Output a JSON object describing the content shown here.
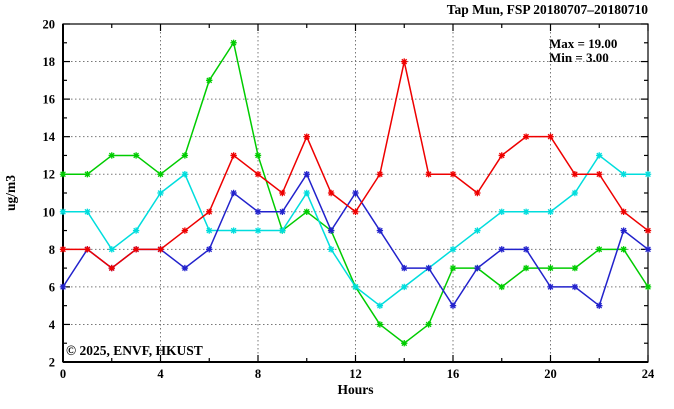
{
  "title": "Tap Mun, FSP 20180707–20180710",
  "legend": {
    "max_label": "Max = 19.00",
    "min_label": "Min =  3.00"
  },
  "watermark": "© 2025, ENVF, HKUST",
  "axes": {
    "x_label": "Hours",
    "y_label": "ug/m3",
    "x_tick_labels": [
      "0",
      "4",
      "8",
      "12",
      "16",
      "20",
      "24"
    ],
    "y_tick_labels": [
      "2",
      "4",
      "6",
      "8",
      "10",
      "12",
      "14",
      "16",
      "18",
      "20"
    ]
  },
  "colors": {
    "red": "#ee0000",
    "green": "#00cc00",
    "blue": "#2222cc",
    "cyan": "#00dddd",
    "grid": "#787878",
    "axis": "#000000",
    "watermark": "#d9d9d9"
  },
  "chart_data": {
    "type": "line",
    "title": "Tap Mun, FSP 20180707–20180710",
    "xlabel": "Hours",
    "ylabel": "ug/m3",
    "xlim": [
      0,
      24
    ],
    "ylim": [
      2,
      20
    ],
    "x_major_ticks": [
      0,
      4,
      8,
      12,
      16,
      20,
      24
    ],
    "x_minor_step": 2,
    "y_major_ticks": [
      2,
      4,
      6,
      8,
      10,
      12,
      14,
      16,
      18,
      20
    ],
    "y_minor_step": 1,
    "grid": true,
    "legend_position": "top-right-inside",
    "stats": {
      "max": 19.0,
      "min": 3.0
    },
    "x": [
      0,
      1,
      2,
      3,
      4,
      5,
      6,
      7,
      8,
      9,
      10,
      11,
      12,
      13,
      14,
      15,
      16,
      17,
      18,
      19,
      20,
      21,
      22,
      23,
      24
    ],
    "series": [
      {
        "name": "green",
        "color": "#00cc00",
        "values": [
          12,
          12,
          13,
          13,
          12,
          13,
          17,
          19,
          13,
          9,
          10,
          9,
          6,
          4,
          3,
          4,
          7,
          7,
          6,
          7,
          7,
          7,
          8,
          8,
          6
        ]
      },
      {
        "name": "cyan",
        "color": "#00dddd",
        "values": [
          10,
          10,
          8,
          9,
          11,
          12,
          9,
          9,
          9,
          9,
          11,
          8,
          6,
          5,
          6,
          7,
          8,
          9,
          10,
          10,
          10,
          11,
          13,
          12,
          12
        ]
      },
      {
        "name": "blue",
        "color": "#2222cc",
        "values": [
          6,
          8,
          7,
          8,
          8,
          7,
          8,
          11,
          10,
          10,
          12,
          9,
          11,
          9,
          7,
          7,
          5,
          7,
          8,
          8,
          6,
          6,
          5,
          9,
          8
        ]
      },
      {
        "name": "red",
        "color": "#ee0000",
        "values": [
          8,
          8,
          7,
          8,
          8,
          9,
          10,
          13,
          12,
          11,
          14,
          11,
          10,
          12,
          18,
          12,
          12,
          11,
          13,
          14,
          14,
          12,
          12,
          10,
          9
        ]
      }
    ]
  }
}
